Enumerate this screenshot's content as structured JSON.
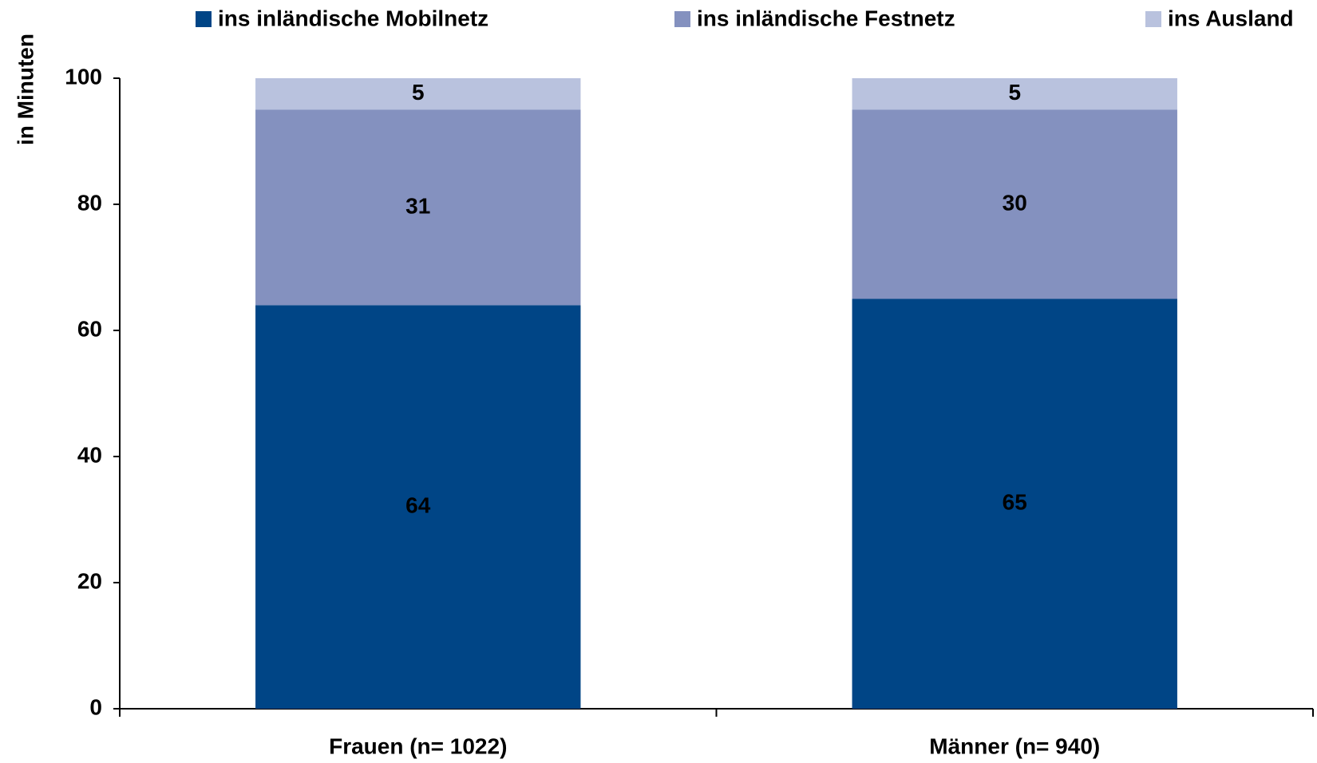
{
  "chart_data": {
    "type": "stacked_bar",
    "y_label": "in Minuten",
    "categories": [
      "Frauen (n= 1022)",
      "Männer (n= 940)"
    ],
    "series": [
      {
        "name": "ins inländische Mobilnetz",
        "color": "#004586",
        "label_color": "#ffffff",
        "values": [
          64,
          65
        ]
      },
      {
        "name": "ins inländische Festnetz",
        "color": "#8491bf",
        "label_color": "#000000",
        "values": [
          31,
          30
        ]
      },
      {
        "name": "ins Ausland",
        "color": "#b9c2de",
        "label_color": "#000000",
        "values": [
          5,
          5
        ]
      }
    ],
    "ylim": [
      0,
      100
    ],
    "yticks": [
      0,
      20,
      40,
      60,
      80,
      100
    ],
    "grid": false,
    "legend": "top"
  }
}
